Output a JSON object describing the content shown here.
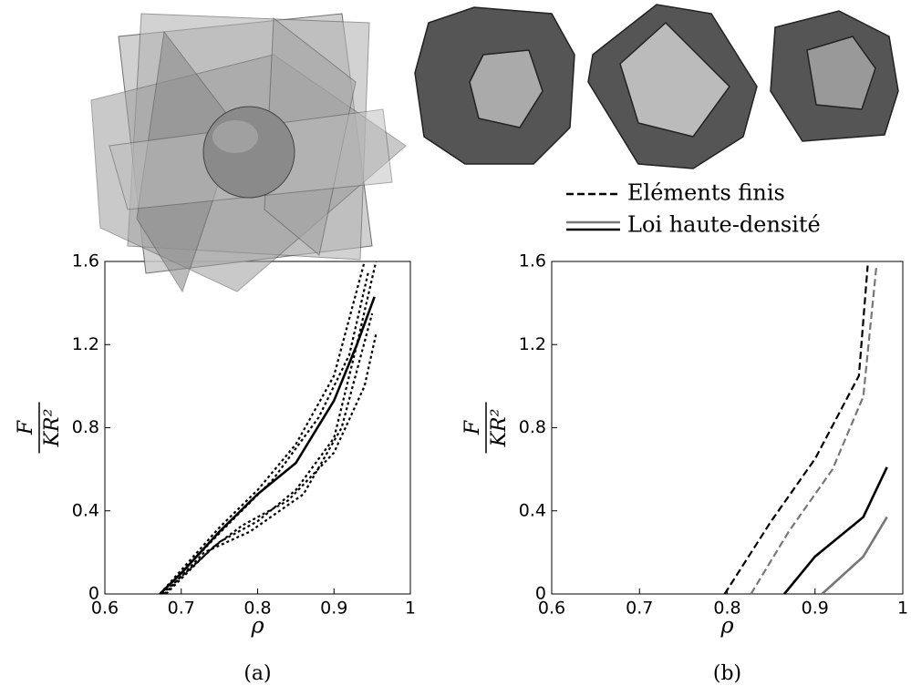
{
  "chart_data": [
    {
      "type": "line",
      "caption": "(a)",
      "xlabel": "ρ",
      "ylabel_num": "F",
      "ylabel_den": "KR²",
      "xlim": [
        0.6,
        1
      ],
      "xticks": [
        0.6,
        0.7,
        0.8,
        0.9,
        1
      ],
      "ylim": [
        0,
        1.6
      ],
      "yticks": [
        0,
        0.4,
        0.8,
        1.2,
        1.6
      ],
      "series": [
        {
          "color": "#000000",
          "dash": true,
          "x": [
            0.672,
            0.75,
            0.8,
            0.85,
            0.9,
            0.94
          ],
          "values": [
            0,
            0.32,
            0.5,
            0.72,
            1.05,
            1.6
          ]
        },
        {
          "color": "#000000",
          "dash": true,
          "x": [
            0.675,
            0.75,
            0.8,
            0.85,
            0.9,
            0.93,
            0.955
          ],
          "values": [
            0,
            0.25,
            0.35,
            0.5,
            0.75,
            1.2,
            1.6
          ]
        },
        {
          "color": "#000000",
          "dash": true,
          "x": [
            0.68,
            0.74,
            0.78,
            0.84,
            0.9,
            0.94,
            0.955
          ],
          "values": [
            0,
            0.22,
            0.33,
            0.45,
            0.68,
            1.0,
            1.25
          ]
        },
        {
          "color": "#000000",
          "dash": true,
          "x": [
            0.673,
            0.76,
            0.82,
            0.88,
            0.92,
            0.945
          ],
          "values": [
            0,
            0.33,
            0.55,
            0.85,
            1.15,
            1.55
          ]
        },
        {
          "color": "#000000",
          "dash": true,
          "x": [
            0.678,
            0.73,
            0.79,
            0.86,
            0.91,
            0.95
          ],
          "values": [
            0,
            0.2,
            0.3,
            0.48,
            0.8,
            1.35
          ]
        },
        {
          "color": "#000000",
          "dash": false,
          "x": [
            0.672,
            0.7,
            0.75,
            0.8,
            0.85,
            0.9,
            0.93,
            0.953
          ],
          "values": [
            0,
            0.1,
            0.3,
            0.48,
            0.63,
            0.93,
            1.2,
            1.43
          ]
        }
      ]
    },
    {
      "type": "line",
      "caption": "(b)",
      "xlabel": "ρ",
      "ylabel_num": "F",
      "ylabel_den": "KR²",
      "xlim": [
        0.6,
        1
      ],
      "xticks": [
        0.6,
        0.7,
        0.8,
        0.9,
        1
      ],
      "ylim": [
        0,
        1.6
      ],
      "yticks": [
        0,
        0.4,
        0.8,
        1.2,
        1.6
      ],
      "legend": [
        {
          "label": "Eléments finis",
          "dash": true,
          "colors": [
            "#000000"
          ]
        },
        {
          "label": "Loi haute-densité",
          "dash": false,
          "colors": [
            "#777777",
            "#000000"
          ]
        }
      ],
      "series": [
        {
          "color": "#000000",
          "dash": true,
          "x": [
            0.797,
            0.85,
            0.9,
            0.95,
            0.96
          ],
          "values": [
            0,
            0.35,
            0.65,
            1.05,
            1.58
          ]
        },
        {
          "color": "#777777",
          "dash": true,
          "x": [
            0.827,
            0.87,
            0.92,
            0.955,
            0.97
          ],
          "values": [
            0,
            0.3,
            0.6,
            0.95,
            1.58
          ]
        },
        {
          "color": "#000000",
          "dash": false,
          "x": [
            0.865,
            0.9,
            0.955,
            0.982
          ],
          "values": [
            0,
            0.18,
            0.37,
            0.61
          ]
        },
        {
          "color": "#777777",
          "dash": false,
          "x": [
            0.908,
            0.955,
            0.982
          ],
          "values": [
            0,
            0.18,
            0.37
          ]
        }
      ]
    }
  ]
}
